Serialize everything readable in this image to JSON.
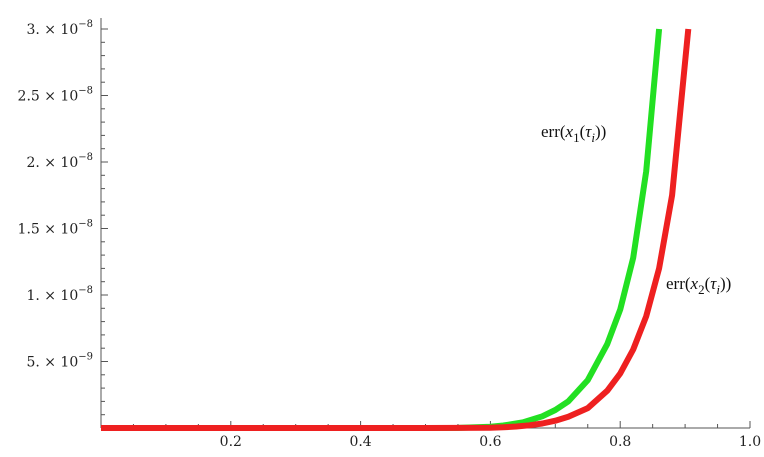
{
  "chart_data": {
    "type": "line",
    "title": "",
    "xlabel": "",
    "ylabel": "",
    "xlim": [
      0,
      1.0
    ],
    "ylim": [
      0,
      3e-08
    ],
    "grid": false,
    "legend": "none",
    "x_ticks": [
      {
        "value": 0.2,
        "label": "0.2"
      },
      {
        "value": 0.4,
        "label": "0.4"
      },
      {
        "value": 0.6,
        "label": "0.6"
      },
      {
        "value": 0.8,
        "label": "0.8"
      },
      {
        "value": 1.0,
        "label": "1.0"
      }
    ],
    "y_ticks": [
      {
        "value": 5e-09,
        "mant": "5.",
        "exp": "−9"
      },
      {
        "value": 1e-08,
        "mant": "1.",
        "exp": "−8"
      },
      {
        "value": 1.5e-08,
        "mant": "1.5",
        "exp": "−8"
      },
      {
        "value": 2e-08,
        "mant": "2.",
        "exp": "−8"
      },
      {
        "value": 2.5e-08,
        "mant": "2.5",
        "exp": "−8"
      },
      {
        "value": 3e-08,
        "mant": "3.",
        "exp": "−8"
      }
    ],
    "series": [
      {
        "color": "#22e022",
        "label_parts": {
          "pre": "err(",
          "var": "x",
          "sub": "1",
          "mid": "(",
          "tau": "τ",
          "tsub": "i",
          "post": "))"
        },
        "x": [
          0,
          0.1,
          0.2,
          0.3,
          0.4,
          0.5,
          0.55,
          0.6,
          0.62,
          0.65,
          0.68,
          0.7,
          0.72,
          0.75,
          0.78,
          0.8,
          0.82,
          0.84,
          0.86
        ],
        "y": [
          0,
          0,
          0,
          0,
          0,
          0,
          1e-11,
          1e-10,
          1.9e-10,
          4.2e-10,
          8.8e-10,
          1.35e-09,
          2e-09,
          3.6e-09,
          6.3e-09,
          8.9e-09,
          1.28e-08,
          1.93e-08,
          3e-08
        ]
      },
      {
        "color": "#ee2020",
        "label_parts": {
          "pre": "err(",
          "var": "x",
          "sub": "2",
          "mid": "(",
          "tau": "τ",
          "tsub": "i",
          "post": "))"
        },
        "x": [
          0,
          0.1,
          0.2,
          0.3,
          0.4,
          0.5,
          0.6,
          0.62,
          0.64,
          0.66,
          0.68,
          0.7,
          0.72,
          0.75,
          0.78,
          0.8,
          0.82,
          0.84,
          0.86,
          0.88,
          0.905
        ],
        "y": [
          0,
          0,
          0,
          0,
          0,
          0,
          2e-11,
          5e-11,
          1.1e-10,
          2e-10,
          3.4e-10,
          5.5e-10,
          8.5e-10,
          1.5e-09,
          2.8e-09,
          4.1e-09,
          5.9e-09,
          8.4e-09,
          1.2e-08,
          1.75e-08,
          3e-08
        ]
      }
    ]
  }
}
